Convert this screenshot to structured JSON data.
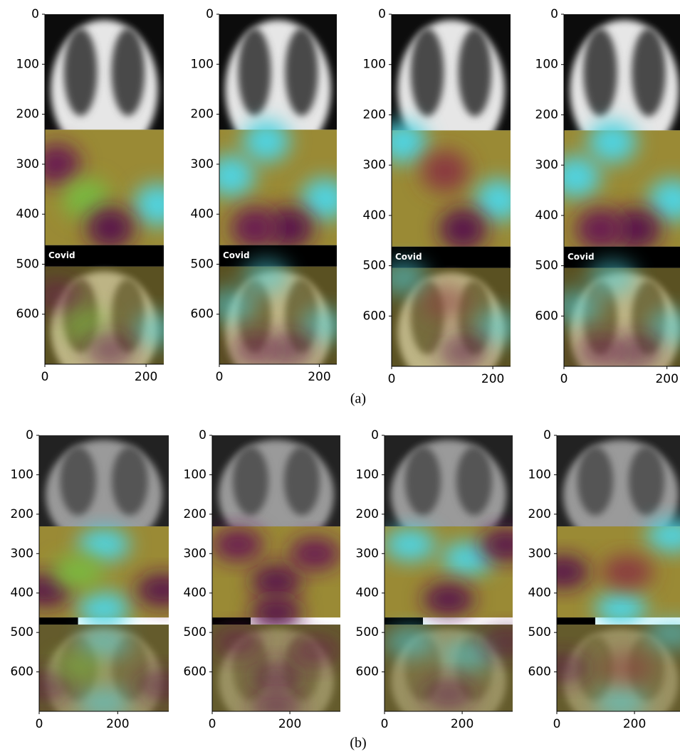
{
  "chart_data": [
    {
      "type": "image",
      "annotation": "Covid",
      "xlim": [
        0,
        235
      ],
      "xticks": [
        0,
        200
      ],
      "ylim": [
        0,
        700
      ],
      "yticks": [
        0,
        100,
        200,
        300,
        400,
        500,
        600
      ]
    },
    {
      "type": "image",
      "annotation": "Covid",
      "xlim": [
        0,
        235
      ],
      "xticks": [
        0,
        200
      ],
      "ylim": [
        0,
        700
      ],
      "yticks": [
        0,
        100,
        200,
        300,
        400,
        500,
        600
      ]
    },
    {
      "type": "image",
      "annotation": "Covid",
      "xlim": [
        0,
        235
      ],
      "xticks": [
        0,
        200
      ],
      "ylim": [
        0,
        700
      ],
      "yticks": [
        0,
        100,
        200,
        300,
        400,
        500,
        600
      ]
    },
    {
      "type": "image",
      "annotation": "Covid",
      "xlim": [
        0,
        235
      ],
      "xticks": [
        0,
        200
      ],
      "ylim": [
        0,
        700
      ],
      "yticks": [
        0,
        100,
        200,
        300,
        400,
        500,
        600
      ]
    },
    {
      "type": "image",
      "xlim": [
        0,
        330
      ],
      "xticks": [
        0,
        200
      ],
      "ylim": [
        0,
        700
      ],
      "yticks": [
        0,
        100,
        200,
        300,
        400,
        500,
        600
      ]
    },
    {
      "type": "image",
      "xlim": [
        0,
        330
      ],
      "xticks": [
        0,
        200
      ],
      "ylim": [
        0,
        700
      ],
      "yticks": [
        0,
        100,
        200,
        300,
        400,
        500,
        600
      ]
    },
    {
      "type": "image",
      "xlim": [
        0,
        330
      ],
      "xticks": [
        0,
        200
      ],
      "ylim": [
        0,
        700
      ],
      "yticks": [
        0,
        100,
        200,
        300,
        400,
        500,
        600
      ]
    },
    {
      "type": "image",
      "xlim": [
        0,
        330
      ],
      "xticks": [
        0,
        200
      ],
      "ylim": [
        0,
        700
      ],
      "yticks": [
        0,
        100,
        200,
        300,
        400,
        500,
        600
      ]
    }
  ],
  "captions": [
    "(a)",
    "(b)"
  ]
}
